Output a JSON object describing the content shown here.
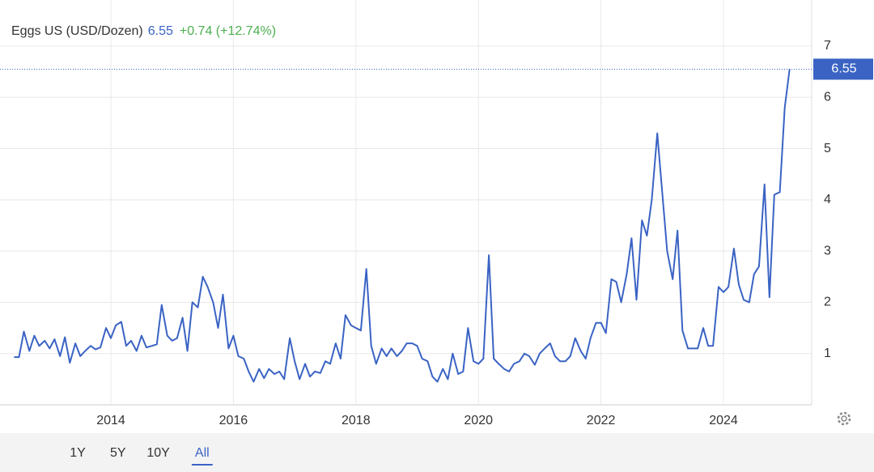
{
  "chart_data": {
    "type": "line",
    "title": "Eggs US (USD/Dozen)",
    "change": "+0.74 (+12.74%)",
    "ranges": [
      "1Y",
      "5Y",
      "10Y",
      "All"
    ],
    "active_range": 3,
    "x": [
      2012.42,
      2012.5,
      2012.58,
      2012.67,
      2012.75,
      2012.83,
      2012.92,
      2013.0,
      2013.08,
      2013.17,
      2013.25,
      2013.33,
      2013.42,
      2013.5,
      2013.58,
      2013.67,
      2013.75,
      2013.83,
      2013.92,
      2014.0,
      2014.08,
      2014.17,
      2014.25,
      2014.33,
      2014.42,
      2014.5,
      2014.58,
      2014.67,
      2014.75,
      2014.83,
      2014.92,
      2015.0,
      2015.08,
      2015.17,
      2015.25,
      2015.33,
      2015.42,
      2015.5,
      2015.58,
      2015.67,
      2015.75,
      2015.83,
      2015.92,
      2016.0,
      2016.08,
      2016.17,
      2016.25,
      2016.33,
      2016.42,
      2016.5,
      2016.58,
      2016.67,
      2016.75,
      2016.83,
      2016.92,
      2017.0,
      2017.08,
      2017.17,
      2017.25,
      2017.33,
      2017.42,
      2017.5,
      2017.58,
      2017.67,
      2017.75,
      2017.83,
      2017.92,
      2018.0,
      2018.08,
      2018.17,
      2018.25,
      2018.33,
      2018.42,
      2018.5,
      2018.58,
      2018.67,
      2018.75,
      2018.83,
      2018.92,
      2019.0,
      2019.08,
      2019.17,
      2019.25,
      2019.33,
      2019.42,
      2019.5,
      2019.58,
      2019.67,
      2019.75,
      2019.83,
      2019.92,
      2020.0,
      2020.08,
      2020.17,
      2020.25,
      2020.33,
      2020.42,
      2020.5,
      2020.58,
      2020.67,
      2020.75,
      2020.83,
      2020.92,
      2021.0,
      2021.08,
      2021.17,
      2021.25,
      2021.33,
      2021.42,
      2021.5,
      2021.58,
      2021.67,
      2021.75,
      2021.83,
      2021.92,
      2022.0,
      2022.08,
      2022.17,
      2022.25,
      2022.33,
      2022.42,
      2022.5,
      2022.58,
      2022.67,
      2022.75,
      2022.83,
      2022.92,
      2023.0,
      2023.08,
      2023.17,
      2023.25,
      2023.33,
      2023.42,
      2023.5,
      2023.58,
      2023.67,
      2023.75,
      2023.83,
      2023.92,
      2024.0,
      2024.08,
      2024.17,
      2024.25,
      2024.33,
      2024.42,
      2024.5,
      2024.58,
      2024.67,
      2024.75,
      2024.83,
      2024.92,
      2025.0,
      2025.08
    ],
    "series": [
      {
        "name": "Eggs US",
        "color": "#3a63c4",
        "values": [
          0.93,
          0.93,
          1.43,
          1.05,
          1.35,
          1.15,
          1.25,
          1.1,
          1.28,
          0.95,
          1.32,
          0.82,
          1.2,
          0.95,
          1.05,
          1.15,
          1.08,
          1.12,
          1.5,
          1.3,
          1.55,
          1.62,
          1.15,
          1.25,
          1.05,
          1.35,
          1.12,
          1.15,
          1.18,
          1.95,
          1.35,
          1.25,
          1.3,
          1.7,
          1.05,
          2.0,
          1.9,
          2.5,
          2.3,
          2.0,
          1.5,
          2.15,
          1.1,
          1.35,
          0.95,
          0.9,
          0.65,
          0.45,
          0.7,
          0.52,
          0.7,
          0.6,
          0.65,
          0.5,
          1.3,
          0.85,
          0.5,
          0.8,
          0.55,
          0.65,
          0.62,
          0.85,
          0.8,
          1.2,
          0.9,
          1.75,
          1.55,
          1.5,
          1.45,
          2.65,
          1.15,
          0.8,
          1.1,
          0.95,
          1.1,
          0.95,
          1.05,
          1.2,
          1.2,
          1.15,
          0.9,
          0.85,
          0.55,
          0.45,
          0.7,
          0.5,
          1.0,
          0.6,
          0.65,
          1.5,
          0.85,
          0.8,
          0.9,
          2.92,
          0.9,
          0.8,
          0.7,
          0.65,
          0.8,
          0.85,
          1.0,
          0.95,
          0.78,
          1.0,
          1.1,
          1.2,
          0.95,
          0.85,
          0.85,
          0.95,
          1.3,
          1.05,
          0.9,
          1.3,
          1.6,
          1.6,
          1.4,
          2.45,
          2.4,
          2.0,
          2.55,
          3.25,
          2.05,
          3.6,
          3.3,
          4.0,
          5.3,
          4.15,
          3.0,
          2.45,
          3.4,
          1.45,
          1.1,
          1.1,
          1.1,
          1.5,
          1.15,
          1.15,
          2.3,
          2.2,
          2.3,
          3.05,
          2.35,
          2.05,
          2.0,
          2.55,
          2.7,
          4.3,
          2.1,
          4.1,
          4.15,
          5.8,
          6.55
        ]
      }
    ],
    "xlim": [
      2012.19,
      2025.44
    ],
    "xticks": [
      2014,
      2016,
      2018,
      2020,
      2022,
      2024
    ],
    "ylim": [
      0,
      7.9
    ],
    "yticks": [
      1,
      2,
      3,
      4,
      5,
      6,
      7
    ],
    "grid": true
  }
}
